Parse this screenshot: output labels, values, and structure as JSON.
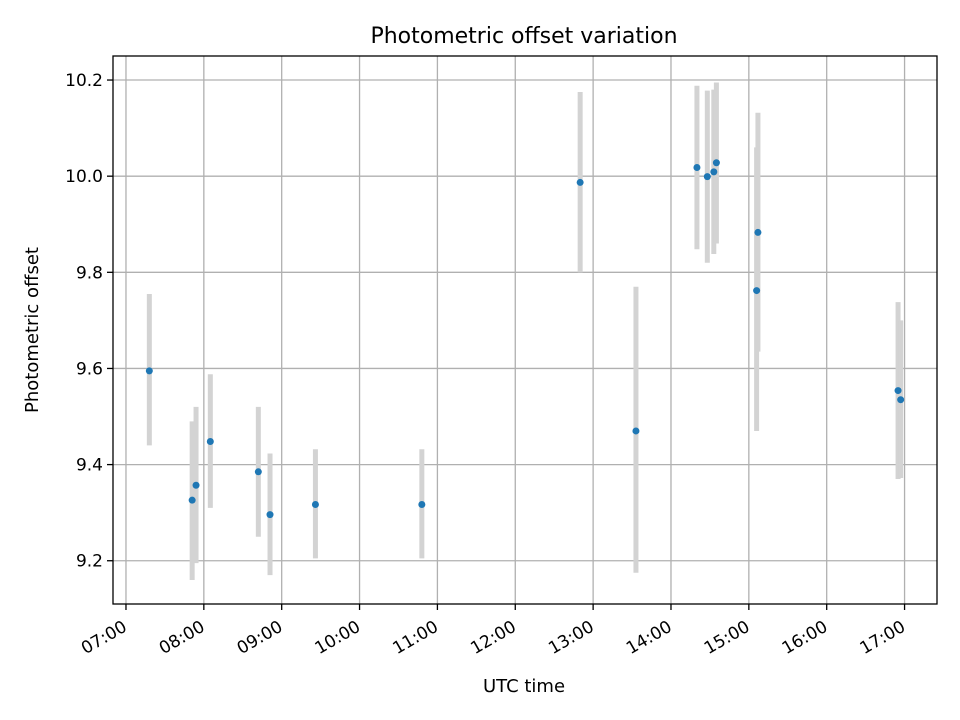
{
  "chart_data": {
    "type": "scatter",
    "title": "Photometric offset variation",
    "xlabel": "UTC time",
    "ylabel": "Photometric offset",
    "xlim": [
      "06:50",
      "17:25"
    ],
    "ylim": [
      9.11,
      10.25
    ],
    "x_ticks": [
      "07:00",
      "08:00",
      "09:00",
      "10:00",
      "11:00",
      "12:00",
      "13:00",
      "14:00",
      "15:00",
      "16:00",
      "17:00"
    ],
    "y_ticks": [
      "9.2",
      "9.4",
      "9.6",
      "9.8",
      "10.0",
      "10.2"
    ],
    "grid": true,
    "colors": {
      "point": "#1f77b4",
      "error_bar": "#d3d3d3"
    },
    "points": [
      {
        "x": "07:18",
        "y": 9.595,
        "ylow": 9.44,
        "yhigh": 9.755
      },
      {
        "x": "07:51",
        "y": 9.326,
        "ylow": 9.16,
        "yhigh": 9.49
      },
      {
        "x": "07:54",
        "y": 9.357,
        "ylow": 9.195,
        "yhigh": 9.52
      },
      {
        "x": "08:05",
        "y": 9.448,
        "ylow": 9.31,
        "yhigh": 9.588
      },
      {
        "x": "08:42",
        "y": 9.385,
        "ylow": 9.25,
        "yhigh": 9.52
      },
      {
        "x": "08:51",
        "y": 9.296,
        "ylow": 9.17,
        "yhigh": 9.423
      },
      {
        "x": "09:26",
        "y": 9.317,
        "ylow": 9.205,
        "yhigh": 9.432
      },
      {
        "x": "10:48",
        "y": 9.317,
        "ylow": 9.205,
        "yhigh": 9.432
      },
      {
        "x": "12:50",
        "y": 9.987,
        "ylow": 9.8,
        "yhigh": 10.175
      },
      {
        "x": "13:33",
        "y": 9.47,
        "ylow": 9.175,
        "yhigh": 9.77
      },
      {
        "x": "14:20",
        "y": 10.018,
        "ylow": 9.848,
        "yhigh": 10.188
      },
      {
        "x": "14:28",
        "y": 9.999,
        "ylow": 9.82,
        "yhigh": 10.178
      },
      {
        "x": "14:33",
        "y": 10.009,
        "ylow": 9.838,
        "yhigh": 10.18
      },
      {
        "x": "14:35",
        "y": 10.028,
        "ylow": 9.86,
        "yhigh": 10.195
      },
      {
        "x": "15:06",
        "y": 9.762,
        "ylow": 9.47,
        "yhigh": 10.06
      },
      {
        "x": "15:07",
        "y": 9.883,
        "ylow": 9.635,
        "yhigh": 10.132
      },
      {
        "x": "16:55",
        "y": 9.554,
        "ylow": 9.37,
        "yhigh": 9.738
      },
      {
        "x": "16:57",
        "y": 9.535,
        "ylow": 9.372,
        "yhigh": 9.7
      }
    ]
  }
}
